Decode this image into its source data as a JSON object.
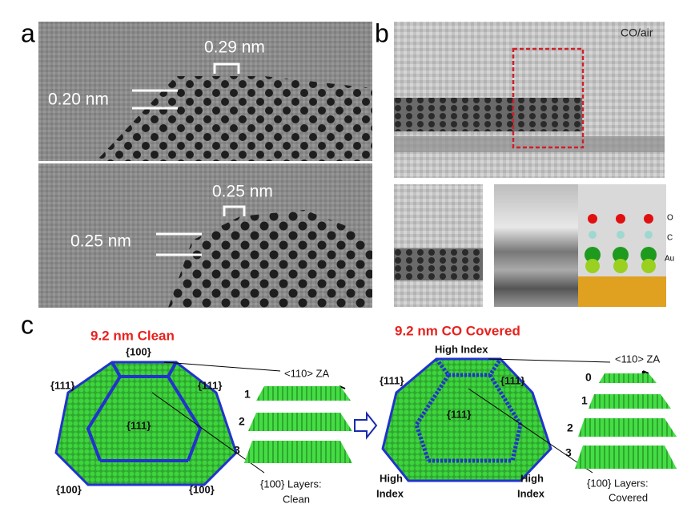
{
  "panels": {
    "a": {
      "label": "a",
      "top": {
        "spacing_label": "0.29 nm",
        "layer_label": "0.20 nm"
      },
      "bottom": {
        "spacing_label": "0.25 nm",
        "layer_label": "0.25 nm"
      }
    },
    "b": {
      "label": "b",
      "condition": "CO/air",
      "atoms": [
        "O",
        "C",
        "Au"
      ]
    },
    "c": {
      "label": "c",
      "clean": {
        "title": "9.2 nm Clean",
        "facets": [
          "{100}",
          "{111}",
          "{111}",
          "{111}",
          "{100}",
          "{100}"
        ],
        "zone_axis": "<110> ZA",
        "layers": [
          "1",
          "2",
          "3"
        ],
        "caption": [
          "{100} Layers:",
          "Clean"
        ]
      },
      "covered": {
        "title": "9.2 nm CO Covered",
        "high_index_top": "High Index",
        "facets": [
          "{111}",
          "{111}",
          "{111}"
        ],
        "high_index_left": [
          "High",
          "Index"
        ],
        "high_index_right": [
          "High",
          "Index"
        ],
        "zone_axis": "<110> ZA",
        "layers": [
          "0",
          "1",
          "2",
          "3"
        ],
        "caption": [
          "{100} Layers:",
          "Covered"
        ]
      }
    }
  }
}
